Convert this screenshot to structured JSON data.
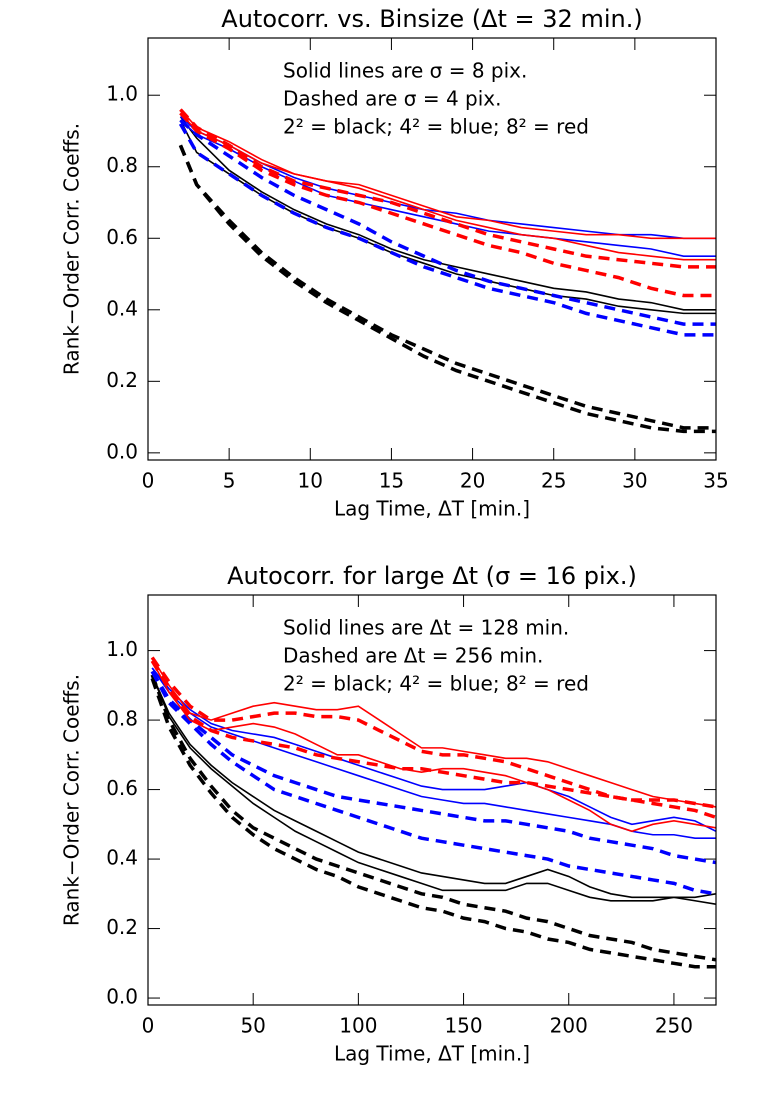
{
  "chart_data": [
    {
      "type": "line",
      "title": "Autocorr. vs. Binsize (Δt = 32 min.)",
      "xlabel": "Lag Time, ΔT [min.]",
      "ylabel": "Rank−Order Corr. Coeffs.",
      "annotations": [
        "Solid lines are σ = 8 pix.",
        "Dashed are σ = 4 pix.",
        "2² = black; 4² = blue; 8² = red"
      ],
      "xlim": [
        0,
        35
      ],
      "ylim": [
        -0.02,
        1.16
      ],
      "xticks": [
        0,
        5,
        10,
        15,
        20,
        25,
        30,
        35
      ],
      "yticks": [
        {
          "value": 0,
          "label": "0.0"
        },
        0.2,
        0.4,
        0.6,
        0.8,
        {
          "value": 1,
          "label": "1.0"
        }
      ],
      "x": [
        2,
        3,
        5,
        7,
        9,
        11,
        13,
        15,
        17,
        19,
        21,
        23,
        25,
        27,
        29,
        31,
        33,
        35
      ],
      "series": [
        {
          "color": "#000000",
          "dashed": false,
          "values": [
            0.93,
            0.84,
            0.78,
            0.72,
            0.67,
            0.63,
            0.6,
            0.56,
            0.53,
            0.5,
            0.48,
            0.46,
            0.44,
            0.43,
            0.41,
            0.4,
            0.39,
            0.39
          ]
        },
        {
          "color": "#000000",
          "dashed": false,
          "values": [
            0.94,
            0.88,
            0.79,
            0.73,
            0.68,
            0.64,
            0.61,
            0.57,
            0.54,
            0.52,
            0.5,
            0.48,
            0.46,
            0.45,
            0.43,
            0.42,
            0.4,
            0.4
          ]
        },
        {
          "color": "#000000",
          "dashed": true,
          "values": [
            0.86,
            0.75,
            0.65,
            0.56,
            0.49,
            0.43,
            0.38,
            0.33,
            0.29,
            0.25,
            0.22,
            0.19,
            0.16,
            0.13,
            0.11,
            0.09,
            0.07,
            0.07
          ]
        },
        {
          "color": "#000000",
          "dashed": true,
          "values": [
            0.86,
            0.75,
            0.64,
            0.55,
            0.48,
            0.42,
            0.37,
            0.32,
            0.27,
            0.23,
            0.2,
            0.17,
            0.14,
            0.11,
            0.09,
            0.07,
            0.06,
            0.06
          ]
        },
        {
          "color": "#0000ff",
          "dashed": false,
          "values": [
            0.94,
            0.9,
            0.86,
            0.81,
            0.77,
            0.74,
            0.72,
            0.7,
            0.68,
            0.67,
            0.65,
            0.64,
            0.63,
            0.62,
            0.61,
            0.61,
            0.6,
            0.6
          ]
        },
        {
          "color": "#0000ff",
          "dashed": false,
          "values": [
            0.93,
            0.89,
            0.85,
            0.8,
            0.76,
            0.72,
            0.7,
            0.68,
            0.66,
            0.64,
            0.62,
            0.61,
            0.6,
            0.59,
            0.58,
            0.57,
            0.55,
            0.55
          ]
        },
        {
          "color": "#0000ff",
          "dashed": true,
          "values": [
            0.92,
            0.84,
            0.78,
            0.72,
            0.67,
            0.63,
            0.6,
            0.56,
            0.52,
            0.49,
            0.46,
            0.44,
            0.42,
            0.39,
            0.37,
            0.35,
            0.33,
            0.33
          ]
        },
        {
          "color": "#0000ff",
          "dashed": true,
          "values": [
            0.93,
            0.89,
            0.83,
            0.77,
            0.72,
            0.68,
            0.64,
            0.59,
            0.55,
            0.51,
            0.48,
            0.46,
            0.44,
            0.42,
            0.4,
            0.38,
            0.36,
            0.36
          ]
        },
        {
          "color": "#ff0000",
          "dashed": false,
          "values": [
            0.96,
            0.91,
            0.87,
            0.82,
            0.78,
            0.76,
            0.75,
            0.72,
            0.69,
            0.66,
            0.65,
            0.63,
            0.62,
            0.61,
            0.61,
            0.6,
            0.6,
            0.6
          ]
        },
        {
          "color": "#ff0000",
          "dashed": false,
          "values": [
            0.95,
            0.9,
            0.86,
            0.81,
            0.78,
            0.76,
            0.74,
            0.71,
            0.68,
            0.65,
            0.63,
            0.61,
            0.6,
            0.58,
            0.56,
            0.55,
            0.54,
            0.54
          ]
        },
        {
          "color": "#ff0000",
          "dashed": true,
          "values": [
            0.95,
            0.9,
            0.85,
            0.79,
            0.75,
            0.72,
            0.7,
            0.67,
            0.64,
            0.61,
            0.58,
            0.56,
            0.53,
            0.51,
            0.49,
            0.46,
            0.44,
            0.44
          ]
        },
        {
          "color": "#ff0000",
          "dashed": true,
          "values": [
            0.96,
            0.91,
            0.86,
            0.8,
            0.76,
            0.74,
            0.72,
            0.7,
            0.67,
            0.64,
            0.61,
            0.59,
            0.57,
            0.55,
            0.54,
            0.53,
            0.52,
            0.52
          ]
        }
      ]
    },
    {
      "type": "line",
      "title": "Autocorr. for large Δt  (σ = 16 pix.)",
      "xlabel": "Lag Time, ΔT [min.]",
      "ylabel": "Rank−Order Corr. Coeffs.",
      "annotations": [
        "Solid lines are Δt = 128 min.",
        "Dashed are Δt = 256 min.",
        "2² = black; 4² = blue; 8² = red"
      ],
      "xlim": [
        0,
        270
      ],
      "ylim": [
        -0.02,
        1.16
      ],
      "xticks": [
        0,
        50,
        100,
        150,
        200,
        250
      ],
      "yticks": [
        {
          "value": 0,
          "label": "0.0"
        },
        0.2,
        0.4,
        0.6,
        0.8,
        {
          "value": 1,
          "label": "1.0"
        }
      ],
      "x": [
        2,
        10,
        20,
        30,
        40,
        50,
        60,
        70,
        80,
        90,
        100,
        110,
        120,
        130,
        140,
        150,
        160,
        170,
        180,
        190,
        200,
        210,
        220,
        230,
        240,
        250,
        260,
        270
      ],
      "series": [
        {
          "color": "#000000",
          "dashed": false,
          "values": [
            0.93,
            0.82,
            0.73,
            0.67,
            0.62,
            0.58,
            0.54,
            0.51,
            0.48,
            0.45,
            0.42,
            0.4,
            0.38,
            0.36,
            0.35,
            0.34,
            0.33,
            0.33,
            0.35,
            0.37,
            0.35,
            0.32,
            0.3,
            0.29,
            0.29,
            0.29,
            0.28,
            0.27
          ]
        },
        {
          "color": "#000000",
          "dashed": false,
          "values": [
            0.93,
            0.81,
            0.72,
            0.66,
            0.61,
            0.56,
            0.52,
            0.48,
            0.45,
            0.42,
            0.39,
            0.37,
            0.35,
            0.33,
            0.31,
            0.31,
            0.31,
            0.31,
            0.33,
            0.33,
            0.31,
            0.29,
            0.28,
            0.28,
            0.28,
            0.29,
            0.29,
            0.3
          ]
        },
        {
          "color": "#000000",
          "dashed": true,
          "values": [
            0.92,
            0.78,
            0.67,
            0.59,
            0.52,
            0.47,
            0.43,
            0.4,
            0.37,
            0.35,
            0.32,
            0.3,
            0.28,
            0.26,
            0.25,
            0.23,
            0.22,
            0.2,
            0.19,
            0.17,
            0.16,
            0.14,
            0.13,
            0.12,
            0.11,
            0.1,
            0.09,
            0.09
          ]
        },
        {
          "color": "#000000",
          "dashed": true,
          "values": [
            0.93,
            0.8,
            0.69,
            0.61,
            0.54,
            0.49,
            0.46,
            0.43,
            0.4,
            0.38,
            0.36,
            0.34,
            0.32,
            0.3,
            0.29,
            0.27,
            0.26,
            0.25,
            0.23,
            0.22,
            0.2,
            0.18,
            0.17,
            0.16,
            0.14,
            0.13,
            0.12,
            0.11
          ]
        },
        {
          "color": "#0000ff",
          "dashed": false,
          "values": [
            0.95,
            0.88,
            0.82,
            0.78,
            0.76,
            0.74,
            0.72,
            0.7,
            0.68,
            0.66,
            0.64,
            0.62,
            0.6,
            0.58,
            0.57,
            0.56,
            0.56,
            0.55,
            0.54,
            0.53,
            0.52,
            0.51,
            0.5,
            0.48,
            0.47,
            0.47,
            0.46,
            0.46
          ]
        },
        {
          "color": "#0000ff",
          "dashed": false,
          "values": [
            0.95,
            0.89,
            0.83,
            0.79,
            0.77,
            0.76,
            0.75,
            0.73,
            0.71,
            0.69,
            0.67,
            0.65,
            0.63,
            0.61,
            0.6,
            0.6,
            0.6,
            0.61,
            0.62,
            0.6,
            0.58,
            0.55,
            0.52,
            0.5,
            0.51,
            0.52,
            0.51,
            0.48
          ]
        },
        {
          "color": "#0000ff",
          "dashed": true,
          "values": [
            0.94,
            0.86,
            0.8,
            0.75,
            0.7,
            0.67,
            0.64,
            0.62,
            0.6,
            0.58,
            0.57,
            0.56,
            0.55,
            0.54,
            0.53,
            0.52,
            0.51,
            0.51,
            0.5,
            0.49,
            0.48,
            0.46,
            0.45,
            0.44,
            0.43,
            0.41,
            0.4,
            0.39
          ]
        },
        {
          "color": "#0000ff",
          "dashed": true,
          "values": [
            0.94,
            0.85,
            0.79,
            0.73,
            0.68,
            0.64,
            0.6,
            0.58,
            0.56,
            0.54,
            0.52,
            0.5,
            0.48,
            0.46,
            0.45,
            0.44,
            0.43,
            0.42,
            0.41,
            0.4,
            0.38,
            0.37,
            0.36,
            0.35,
            0.34,
            0.33,
            0.31,
            0.3
          ]
        },
        {
          "color": "#ff0000",
          "dashed": false,
          "values": [
            0.98,
            0.9,
            0.82,
            0.8,
            0.82,
            0.84,
            0.85,
            0.84,
            0.83,
            0.83,
            0.84,
            0.8,
            0.76,
            0.72,
            0.72,
            0.71,
            0.7,
            0.69,
            0.69,
            0.68,
            0.66,
            0.64,
            0.62,
            0.6,
            0.58,
            0.57,
            0.56,
            0.55
          ]
        },
        {
          "color": "#ff0000",
          "dashed": false,
          "values": [
            0.97,
            0.88,
            0.8,
            0.77,
            0.78,
            0.79,
            0.78,
            0.76,
            0.73,
            0.7,
            0.7,
            0.68,
            0.66,
            0.65,
            0.66,
            0.66,
            0.65,
            0.64,
            0.62,
            0.6,
            0.57,
            0.54,
            0.5,
            0.48,
            0.5,
            0.51,
            0.5,
            0.49
          ]
        },
        {
          "color": "#ff0000",
          "dashed": true,
          "values": [
            0.98,
            0.91,
            0.84,
            0.8,
            0.8,
            0.81,
            0.82,
            0.82,
            0.81,
            0.81,
            0.8,
            0.77,
            0.74,
            0.71,
            0.7,
            0.7,
            0.69,
            0.68,
            0.66,
            0.64,
            0.62,
            0.6,
            0.58,
            0.57,
            0.57,
            0.57,
            0.56,
            0.55
          ]
        },
        {
          "color": "#ff0000",
          "dashed": true,
          "values": [
            0.97,
            0.89,
            0.81,
            0.77,
            0.75,
            0.74,
            0.73,
            0.72,
            0.7,
            0.69,
            0.68,
            0.67,
            0.66,
            0.66,
            0.65,
            0.64,
            0.63,
            0.62,
            0.62,
            0.61,
            0.6,
            0.59,
            0.58,
            0.57,
            0.56,
            0.55,
            0.54,
            0.52
          ]
        }
      ]
    }
  ]
}
